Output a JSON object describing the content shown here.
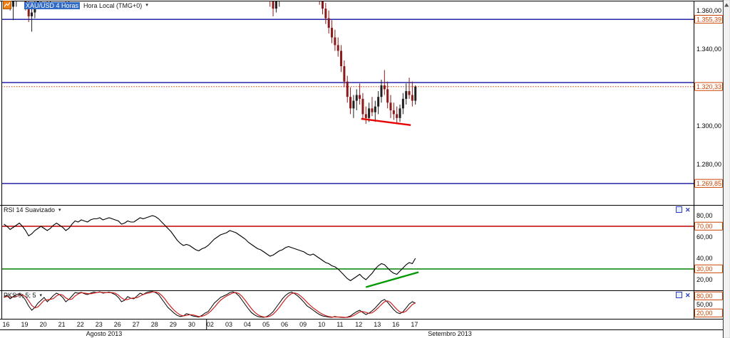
{
  "header": {
    "symbol_timeframe": "XAU/USD 4 Horas",
    "timezone_label": "Hora Local (TMG+0)",
    "caret": "▾"
  },
  "indicators": {
    "rsi": {
      "label": "RSI 14 Suavizado",
      "caret": "▾"
    },
    "pks": {
      "label": "PKS 9; 5; 5",
      "caret": "▾"
    }
  },
  "icons": {
    "close": "✕"
  },
  "colors": {
    "up_candle": "#1f1f1f",
    "down_candle": "#8b1a1a",
    "level_line": "#2626a8",
    "last_price_line": "#cc4400",
    "boxed_label": "#cc4400",
    "plain_label": "#000000",
    "trend_red": "#e80000",
    "trend_green": "#009900",
    "rsi_line": "#000000",
    "rsi_upper_line": "#c00000",
    "rsi_lower_line": "#008000",
    "pks_k_line": "#000000",
    "pks_d_line": "#cc2222",
    "border": "#000000"
  },
  "x_axis": {
    "day_labels": [
      "16",
      "19",
      "20",
      "21",
      "22",
      "23",
      "26",
      "27",
      "28",
      "29",
      "30",
      "02",
      "03",
      "04",
      "05",
      "06",
      "09",
      "10",
      "11",
      "12",
      "13",
      "16",
      "17"
    ],
    "months": [
      {
        "label": "Agosto 2013"
      },
      {
        "label": "Setembro 2013"
      }
    ],
    "month_boundary_day_index": 11
  },
  "chart_data": [
    {
      "type": "candlestick",
      "panel": "price",
      "title": "XAU/USD 4 Horas Hora Local (TMG+0)",
      "ylim": [
        1258.7,
        1365.5
      ],
      "last_price": 1320.33,
      "y_ticks": [
        {
          "label": "1.360,00",
          "value": 1360,
          "boxed": false
        },
        {
          "label": "1.355,39",
          "value": 1355.39,
          "boxed": true
        },
        {
          "label": "1.340,00",
          "value": 1340,
          "boxed": false
        },
        {
          "label": "1.320,33",
          "value": 1320.33,
          "boxed": true
        },
        {
          "label": "1.300,00",
          "value": 1300,
          "boxed": false
        },
        {
          "label": "1.280,00",
          "value": 1280,
          "boxed": false
        },
        {
          "label": "1.269,85",
          "value": 1269.85,
          "boxed": true
        }
      ],
      "h_lines": [
        {
          "value": 1355.39,
          "style": "solid",
          "role": "level"
        },
        {
          "value": 1322.5,
          "style": "solid",
          "role": "level"
        },
        {
          "value": 1269.85,
          "style": "solid",
          "role": "level"
        },
        {
          "value": 1320.33,
          "style": "dotted",
          "role": "last-price"
        }
      ],
      "trend_line": {
        "i1": 115.5,
        "v1": 1303.6,
        "i2": 131.5,
        "v2": 1300.3
      },
      "candles": [
        [
          1365,
          1376,
          1361,
          1370
        ],
        [
          1370,
          1377,
          1364,
          1366
        ],
        [
          1366,
          1372,
          1360,
          1362
        ],
        [
          1362,
          1368,
          1355,
          1365
        ],
        [
          1365,
          1374,
          1362,
          1371
        ],
        [
          1371,
          1377,
          1368,
          1375
        ],
        [
          1375,
          1376,
          1366,
          1368
        ],
        [
          1368,
          1370,
          1360,
          1363
        ],
        [
          1363,
          1365,
          1354,
          1357
        ],
        [
          1357,
          1362,
          1349,
          1359
        ],
        [
          1359,
          1366,
          1356,
          1364
        ],
        [
          1364,
          1369,
          1361,
          1366
        ],
        [
          1366,
          1372,
          1363,
          1370
        ],
        [
          1370,
          1375,
          1366,
          1368
        ],
        [
          1368,
          1371,
          1362,
          1365
        ],
        [
          1365,
          1370,
          1361,
          1368
        ],
        [
          1368,
          1374,
          1365,
          1372
        ],
        [
          1372,
          1377,
          1369,
          1375
        ],
        [
          1375,
          1378,
          1370,
          1373
        ],
        [
          1373,
          1376,
          1367,
          1369
        ],
        [
          1369,
          1372,
          1363,
          1366
        ],
        [
          1366,
          1370,
          1362,
          1368
        ],
        [
          1368,
          1375,
          1366,
          1373
        ],
        [
          1373,
          1380,
          1371,
          1378
        ],
        [
          1378,
          1384,
          1375,
          1382
        ],
        [
          1382,
          1388,
          1379,
          1386
        ],
        [
          1386,
          1390,
          1382,
          1384
        ],
        [
          1384,
          1389,
          1381,
          1387
        ],
        [
          1387,
          1393,
          1384,
          1391
        ],
        [
          1391,
          1396,
          1388,
          1394
        ],
        [
          1394,
          1399,
          1390,
          1396
        ],
        [
          1396,
          1402,
          1393,
          1400
        ],
        [
          1400,
          1404,
          1396,
          1398
        ],
        [
          1398,
          1403,
          1395,
          1401
        ],
        [
          1401,
          1406,
          1398,
          1404
        ],
        [
          1404,
          1408,
          1400,
          1402
        ],
        [
          1402,
          1407,
          1398,
          1405
        ],
        [
          1405,
          1409,
          1401,
          1403
        ],
        [
          1403,
          1406,
          1398,
          1400
        ],
        [
          1400,
          1405,
          1397,
          1403
        ],
        [
          1403,
          1408,
          1400,
          1406
        ],
        [
          1406,
          1410,
          1402,
          1404
        ],
        [
          1404,
          1410,
          1401,
          1408
        ],
        [
          1408,
          1414,
          1405,
          1412
        ],
        [
          1412,
          1418,
          1409,
          1416
        ],
        [
          1416,
          1420,
          1412,
          1414
        ],
        [
          1414,
          1419,
          1411,
          1417
        ],
        [
          1417,
          1422,
          1414,
          1420
        ],
        [
          1420,
          1426,
          1417,
          1424
        ],
        [
          1424,
          1430,
          1421,
          1428
        ],
        [
          1428,
          1434,
          1425,
          1431
        ],
        [
          1431,
          1433,
          1426,
          1429
        ],
        [
          1429,
          1432,
          1424,
          1427
        ],
        [
          1427,
          1430,
          1422,
          1425
        ],
        [
          1425,
          1428,
          1419,
          1422
        ],
        [
          1422,
          1425,
          1415,
          1418
        ],
        [
          1418,
          1421,
          1411,
          1414
        ],
        [
          1414,
          1418,
          1408,
          1411
        ],
        [
          1411,
          1415,
          1405,
          1409
        ],
        [
          1409,
          1413,
          1406,
          1410
        ],
        [
          1410,
          1413,
          1403,
          1406
        ],
        [
          1406,
          1409,
          1399,
          1402
        ],
        [
          1402,
          1406,
          1396,
          1399
        ],
        [
          1399,
          1403,
          1393,
          1396
        ],
        [
          1396,
          1400,
          1392,
          1398
        ],
        [
          1398,
          1402,
          1394,
          1396
        ],
        [
          1396,
          1399,
          1390,
          1393
        ],
        [
          1393,
          1397,
          1388,
          1391
        ],
        [
          1391,
          1395,
          1387,
          1394
        ],
        [
          1394,
          1398,
          1390,
          1392
        ],
        [
          1392,
          1396,
          1388,
          1390
        ],
        [
          1390,
          1394,
          1386,
          1392
        ],
        [
          1392,
          1398,
          1389,
          1396
        ],
        [
          1396,
          1403,
          1393,
          1401
        ],
        [
          1401,
          1408,
          1398,
          1406
        ],
        [
          1406,
          1413,
          1403,
          1410
        ],
        [
          1410,
          1416,
          1407,
          1412
        ],
        [
          1412,
          1415,
          1406,
          1409
        ],
        [
          1409,
          1412,
          1402,
          1405
        ],
        [
          1405,
          1408,
          1398,
          1401
        ],
        [
          1401,
          1404,
          1394,
          1397
        ],
        [
          1397,
          1401,
          1391,
          1394
        ],
        [
          1394,
          1398,
          1388,
          1391
        ],
        [
          1391,
          1395,
          1386,
          1389
        ],
        [
          1389,
          1392,
          1380,
          1383
        ],
        [
          1383,
          1386,
          1372,
          1375
        ],
        [
          1375,
          1378,
          1362,
          1365
        ],
        [
          1365,
          1369,
          1357,
          1361
        ],
        [
          1361,
          1367,
          1359,
          1365
        ],
        [
          1365,
          1371,
          1362,
          1369
        ],
        [
          1369,
          1375,
          1366,
          1373
        ],
        [
          1373,
          1380,
          1370,
          1377
        ],
        [
          1377,
          1384,
          1374,
          1381
        ],
        [
          1381,
          1388,
          1378,
          1386
        ],
        [
          1386,
          1391,
          1382,
          1384
        ],
        [
          1384,
          1389,
          1380,
          1387
        ],
        [
          1387,
          1390,
          1381,
          1384
        ],
        [
          1384,
          1387,
          1377,
          1380
        ],
        [
          1380,
          1383,
          1374,
          1377
        ],
        [
          1377,
          1381,
          1372,
          1375
        ],
        [
          1375,
          1379,
          1370,
          1373
        ],
        [
          1373,
          1377,
          1367,
          1370
        ],
        [
          1370,
          1373,
          1363,
          1366
        ],
        [
          1366,
          1369,
          1358,
          1361
        ],
        [
          1361,
          1364,
          1353,
          1356
        ],
        [
          1356,
          1360,
          1348,
          1351
        ],
        [
          1351,
          1355,
          1343,
          1346
        ],
        [
          1346,
          1350,
          1339,
          1342
        ],
        [
          1342,
          1346,
          1336,
          1339
        ],
        [
          1339,
          1342,
          1328,
          1331
        ],
        [
          1331,
          1334,
          1320,
          1323
        ],
        [
          1323,
          1326,
          1312,
          1315
        ],
        [
          1315,
          1320,
          1306,
          1309
        ],
        [
          1309,
          1316,
          1304,
          1313
        ],
        [
          1313,
          1319,
          1308,
          1316
        ],
        [
          1316,
          1322,
          1311,
          1314
        ],
        [
          1314,
          1317,
          1303,
          1306
        ],
        [
          1306,
          1310,
          1301,
          1304
        ],
        [
          1304,
          1312,
          1302,
          1309
        ],
        [
          1309,
          1315,
          1305,
          1307
        ],
        [
          1307,
          1313,
          1302,
          1310
        ],
        [
          1310,
          1318,
          1306,
          1315
        ],
        [
          1315,
          1324,
          1312,
          1321
        ],
        [
          1321,
          1329,
          1316,
          1319
        ],
        [
          1319,
          1323,
          1309,
          1312
        ],
        [
          1312,
          1316,
          1304,
          1308
        ],
        [
          1308,
          1312,
          1303,
          1306
        ],
        [
          1306,
          1310,
          1301,
          1304
        ],
        [
          1304,
          1311,
          1302,
          1309
        ],
        [
          1309,
          1317,
          1306,
          1314
        ],
        [
          1314,
          1322,
          1311,
          1318
        ],
        [
          1318,
          1325,
          1314,
          1316
        ],
        [
          1316,
          1323,
          1310,
          1313
        ],
        [
          1313,
          1321,
          1311,
          1320.33
        ]
      ]
    },
    {
      "type": "line",
      "panel": "rsi",
      "label": "RSI 14 Suavizado",
      "ylim": [
        10,
        90
      ],
      "y_ticks": [
        {
          "label": "80,00",
          "value": 80,
          "boxed": false
        },
        {
          "label": "70,00",
          "value": 70,
          "boxed": true
        },
        {
          "label": "60,00",
          "value": 60,
          "boxed": false
        },
        {
          "label": "40,00",
          "value": 40,
          "boxed": false
        },
        {
          "label": "30,00",
          "value": 30,
          "boxed": true
        },
        {
          "label": "20,00",
          "value": 20,
          "boxed": false
        }
      ],
      "h_lines": [
        {
          "value": 70,
          "role": "upper"
        },
        {
          "value": 30,
          "role": "lower"
        }
      ],
      "trend_line": {
        "i1": 117,
        "v1": 13,
        "i2": 134,
        "v2": 27
      },
      "values": [
        72,
        70,
        67,
        69,
        71,
        73,
        70,
        66,
        61,
        63,
        66,
        68,
        70,
        68,
        66,
        68,
        71,
        73,
        71,
        69,
        66,
        68,
        72,
        75,
        74,
        76,
        75,
        74,
        76,
        77,
        77,
        78,
        76,
        77,
        78,
        77,
        76,
        75,
        72,
        73,
        75,
        74,
        74,
        76,
        78,
        77,
        78,
        79,
        80,
        79,
        77,
        74,
        71,
        68,
        65,
        61,
        57,
        54,
        52,
        53,
        52,
        50,
        48,
        47,
        49,
        50,
        52,
        55,
        58,
        60,
        62,
        63,
        64,
        66,
        65,
        64,
        62,
        60,
        58,
        55,
        53,
        51,
        49,
        48,
        46,
        44,
        42,
        43,
        45,
        47,
        48,
        50,
        51,
        50,
        49,
        48,
        47,
        46,
        44,
        43,
        44,
        42,
        40,
        38,
        36,
        35,
        33,
        32,
        30,
        27,
        24,
        21,
        19,
        21,
        23,
        25,
        22,
        20,
        23,
        26,
        30,
        33,
        35,
        34,
        31,
        28,
        26,
        25,
        28,
        31,
        34,
        36,
        35,
        40
      ]
    },
    {
      "type": "line",
      "panel": "pks",
      "label": "PKS 9; 5; 5",
      "ylim": [
        0,
        100
      ],
      "d_period": 3,
      "y_ticks": [
        {
          "label": "80,00",
          "value": 80,
          "boxed": true
        },
        {
          "label": "50,00",
          "value": 50,
          "boxed": false
        },
        {
          "label": "20,00",
          "value": 20,
          "boxed": true
        }
      ],
      "values_k": [
        75,
        82,
        70,
        78,
        85,
        88,
        80,
        65,
        45,
        30,
        40,
        55,
        65,
        75,
        60,
        70,
        82,
        90,
        85,
        75,
        60,
        68,
        80,
        92,
        90,
        93,
        88,
        85,
        90,
        94,
        92,
        95,
        90,
        92,
        94,
        90,
        85,
        75,
        60,
        65,
        78,
        72,
        70,
        80,
        90,
        85,
        92,
        95,
        96,
        92,
        85,
        70,
        55,
        40,
        30,
        20,
        12,
        8,
        10,
        18,
        15,
        10,
        8,
        6,
        12,
        20,
        25,
        40,
        55,
        65,
        75,
        80,
        85,
        92,
        95,
        90,
        80,
        65,
        50,
        35,
        22,
        14,
        8,
        6,
        5,
        8,
        15,
        25,
        40,
        55,
        70,
        82,
        90,
        94,
        88,
        80,
        70,
        58,
        45,
        38,
        30,
        22,
        15,
        10,
        8,
        6,
        5,
        8,
        6,
        5,
        4,
        6,
        10,
        18,
        25,
        30,
        22,
        15,
        20,
        28,
        38,
        50,
        62,
        68,
        58,
        45,
        32,
        22,
        18,
        25,
        38,
        52,
        60,
        55
      ]
    }
  ]
}
